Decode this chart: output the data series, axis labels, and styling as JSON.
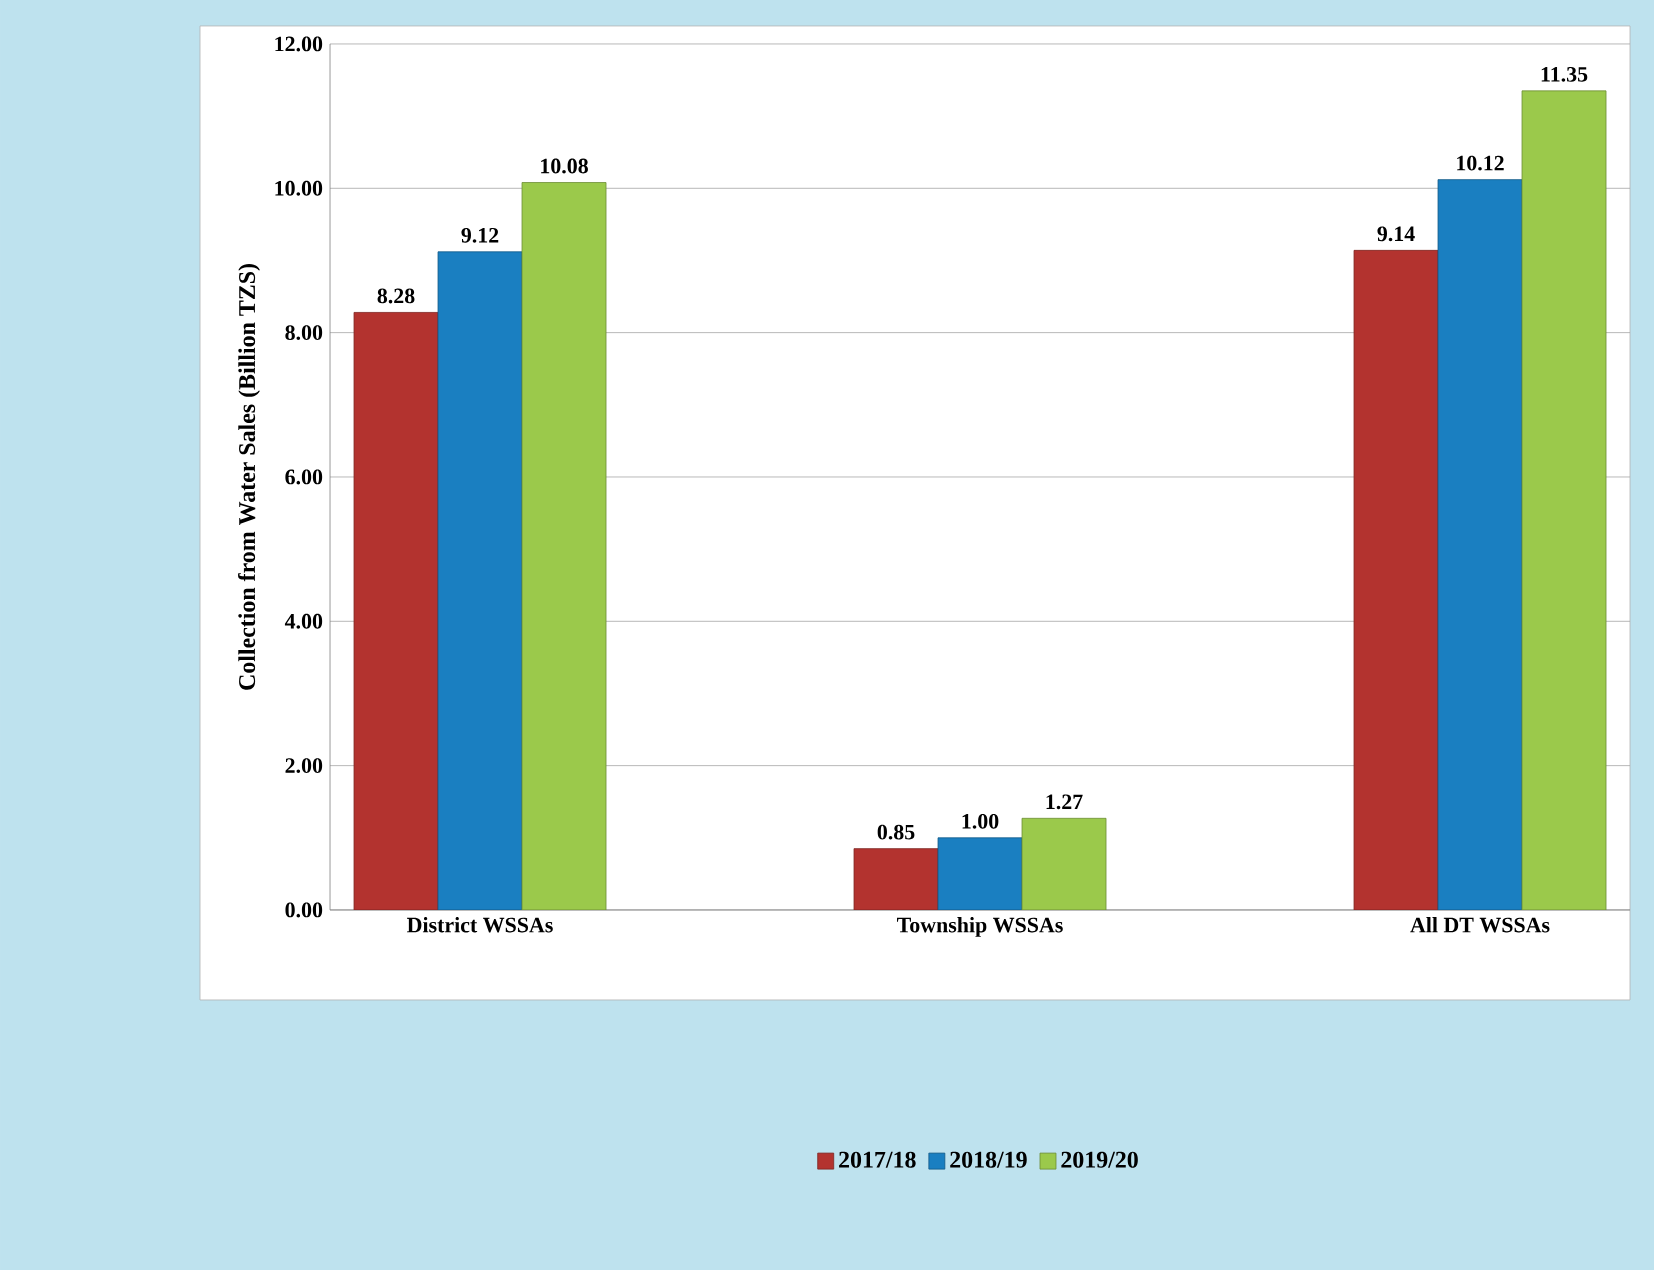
{
  "chart_data": {
    "type": "bar",
    "ylabel": "Collection from Water Sales (Billion TZS)",
    "categories": [
      "District WSSAs",
      "Township WSSAs",
      "All DT WSSAs"
    ],
    "series": [
      {
        "name": "2017/18",
        "color": "#b3332f",
        "values": [
          8.28,
          0.85,
          9.14
        ],
        "value_labels": [
          "8.28",
          "0.85",
          "9.14"
        ]
      },
      {
        "name": "2018/19",
        "color": "#1a7fc1",
        "values": [
          9.12,
          1.0,
          10.12
        ],
        "value_labels": [
          "9.12",
          "1.00",
          "10.12"
        ]
      },
      {
        "name": "2019/20",
        "color": "#9bc94b",
        "values": [
          10.08,
          1.27,
          11.35
        ],
        "value_labels": [
          "10.08",
          "1.27",
          "11.35"
        ]
      }
    ],
    "ylim": [
      0,
      12
    ],
    "yticks": [
      {
        "value": 0,
        "label": "0.00"
      },
      {
        "value": 2,
        "label": "2.00"
      },
      {
        "value": 4,
        "label": "4.00"
      },
      {
        "value": 6,
        "label": "6.00"
      },
      {
        "value": 8,
        "label": "8.00"
      },
      {
        "value": 10,
        "label": "10.00"
      },
      {
        "value": 12,
        "label": "12.00"
      }
    ],
    "grid": "y",
    "legend": "bottom"
  }
}
